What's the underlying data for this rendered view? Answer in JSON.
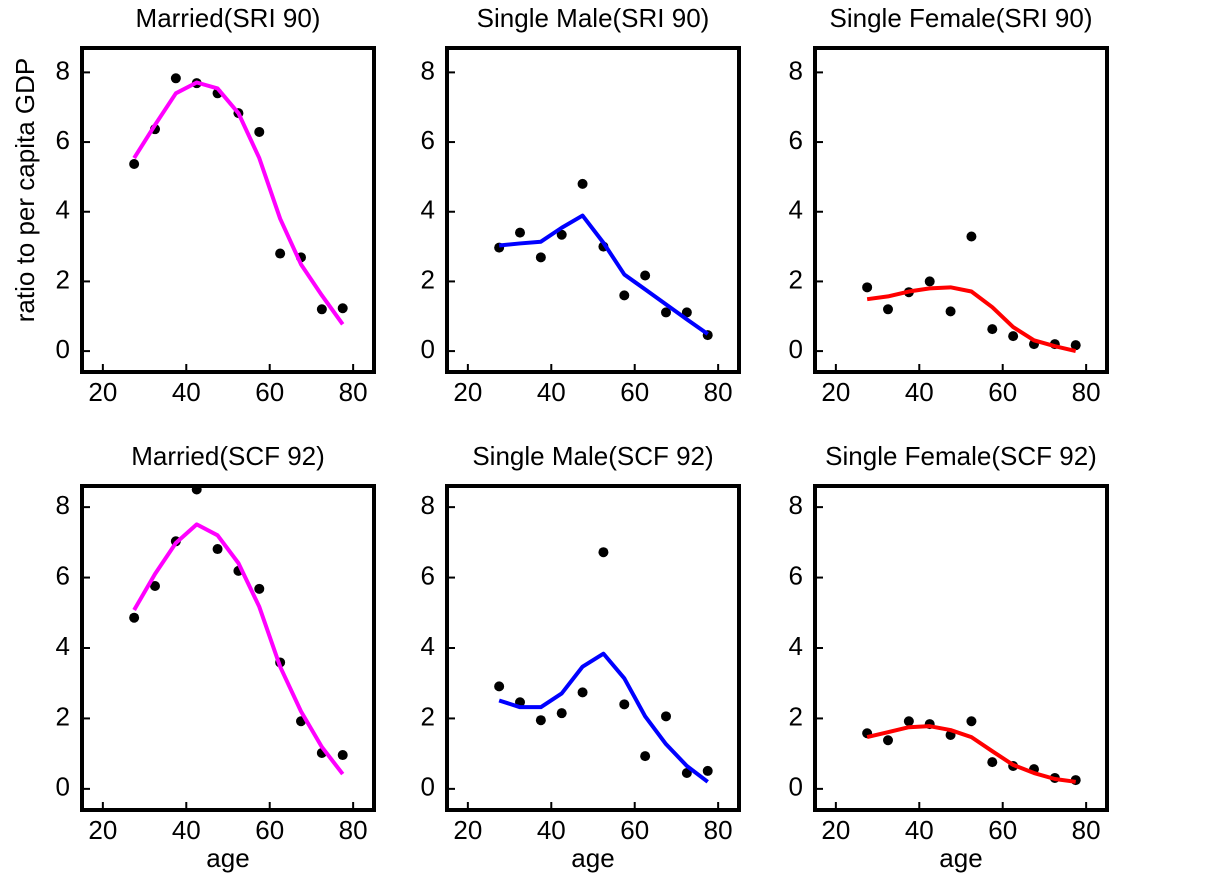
{
  "chart_data": [
    {
      "type": "line",
      "title": "Married(SRI 90)",
      "ylabel": "ratio to per capita GDP",
      "x": [
        27.5,
        32.5,
        37.5,
        42.5,
        47.5,
        52.5,
        57.5,
        62.5,
        67.5,
        72.5,
        77.5
      ],
      "series": [
        {
          "mode": "markers",
          "color": "#000000",
          "values": [
            5.37,
            6.37,
            7.83,
            7.69,
            7.4,
            6.83,
            6.29,
            2.8,
            2.69,
            1.2,
            1.23
          ]
        },
        {
          "mode": "line",
          "color": "#ff00ff",
          "values": [
            5.54,
            6.49,
            7.4,
            7.71,
            7.54,
            6.83,
            5.54,
            3.8,
            2.49,
            1.6,
            0.77
          ]
        }
      ],
      "xlim": [
        15,
        85
      ],
      "xticks": [
        20,
        40,
        60,
        80
      ],
      "ylim": [
        -0.6,
        8.7
      ],
      "yticks": [
        0,
        2,
        4,
        6,
        8
      ]
    },
    {
      "type": "line",
      "title": "Single Male(SRI 90)",
      "x": [
        27.5,
        32.5,
        37.5,
        42.5,
        47.5,
        52.5,
        57.5,
        62.5,
        67.5,
        72.5,
        77.5
      ],
      "series": [
        {
          "mode": "markers",
          "color": "#000000",
          "values": [
            2.97,
            3.4,
            2.69,
            3.34,
            4.8,
            3.0,
            1.6,
            2.17,
            1.11,
            1.11,
            0.46
          ]
        },
        {
          "mode": "line",
          "color": "#0000ff",
          "values": [
            3.03,
            3.09,
            3.14,
            3.54,
            3.89,
            3.11,
            2.2,
            1.77,
            1.34,
            0.91,
            0.49
          ]
        }
      ],
      "xlim": [
        15,
        85
      ],
      "xticks": [
        20,
        40,
        60,
        80
      ],
      "ylim": [
        -0.6,
        8.7
      ],
      "yticks": [
        0,
        2,
        4,
        6,
        8
      ]
    },
    {
      "type": "line",
      "title": "Single Female(SRI 90)",
      "x": [
        27.5,
        32.5,
        37.5,
        42.5,
        47.5,
        52.5,
        57.5,
        62.5,
        67.5,
        72.5,
        77.5
      ],
      "series": [
        {
          "mode": "markers",
          "color": "#000000",
          "values": [
            1.83,
            1.2,
            1.69,
            2.0,
            1.14,
            3.29,
            0.63,
            0.43,
            0.2,
            0.2,
            0.17
          ]
        },
        {
          "mode": "line",
          "color": "#ff0000",
          "values": [
            1.49,
            1.57,
            1.71,
            1.8,
            1.83,
            1.71,
            1.26,
            0.69,
            0.31,
            0.14,
            0
          ]
        }
      ],
      "xlim": [
        15,
        85
      ],
      "xticks": [
        20,
        40,
        60,
        80
      ],
      "ylim": [
        -0.6,
        8.7
      ],
      "yticks": [
        0,
        2,
        4,
        6,
        8
      ]
    },
    {
      "type": "line",
      "title": "Married(SCF 92)",
      "xlabel": "age",
      "x": [
        27.5,
        32.5,
        37.5,
        42.5,
        47.5,
        52.5,
        57.5,
        62.5,
        67.5,
        72.5,
        77.5
      ],
      "series": [
        {
          "mode": "markers",
          "color": "#000000",
          "values": [
            4.86,
            5.76,
            7.03,
            8.5,
            6.81,
            6.19,
            5.68,
            3.59,
            1.92,
            1.02,
            0.96
          ]
        },
        {
          "mode": "line",
          "color": "#ff00ff",
          "values": [
            5.08,
            6.1,
            6.98,
            7.51,
            7.2,
            6.41,
            5.17,
            3.47,
            2.2,
            1.19,
            0.42
          ]
        }
      ],
      "xlim": [
        15,
        85
      ],
      "xticks": [
        20,
        40,
        60,
        80
      ],
      "ylim": [
        -0.6,
        8.6
      ],
      "yticks": [
        0,
        2,
        4,
        6,
        8
      ]
    },
    {
      "type": "line",
      "title": "Single Male(SCF 92)",
      "xlabel": "age",
      "x": [
        27.5,
        32.5,
        37.5,
        42.5,
        47.5,
        52.5,
        57.5,
        62.5,
        67.5,
        72.5,
        77.5
      ],
      "series": [
        {
          "mode": "markers",
          "color": "#000000",
          "values": [
            2.91,
            2.46,
            1.95,
            2.15,
            2.74,
            6.72,
            2.4,
            0.93,
            2.06,
            0.45,
            0.51
          ]
        },
        {
          "mode": "line",
          "color": "#0000ff",
          "values": [
            2.51,
            2.32,
            2.32,
            2.71,
            3.47,
            3.84,
            3.14,
            2.06,
            1.27,
            0.65,
            0.2
          ]
        }
      ],
      "xlim": [
        15,
        85
      ],
      "xticks": [
        20,
        40,
        60,
        80
      ],
      "ylim": [
        -0.6,
        8.6
      ],
      "yticks": [
        0,
        2,
        4,
        6,
        8
      ]
    },
    {
      "type": "line",
      "title": "Single Female(SCF 92)",
      "xlabel": "age",
      "x": [
        27.5,
        32.5,
        37.5,
        42.5,
        47.5,
        52.5,
        57.5,
        62.5,
        67.5,
        72.5,
        77.5
      ],
      "series": [
        {
          "mode": "markers",
          "color": "#000000",
          "values": [
            1.58,
            1.38,
            1.92,
            1.84,
            1.53,
            1.92,
            0.76,
            0.65,
            0.56,
            0.31,
            0.25
          ]
        },
        {
          "mode": "line",
          "color": "#ff0000",
          "values": [
            1.47,
            1.61,
            1.75,
            1.78,
            1.67,
            1.47,
            1.07,
            0.68,
            0.45,
            0.28,
            0.2
          ]
        }
      ],
      "xlim": [
        15,
        85
      ],
      "xticks": [
        20,
        40,
        60,
        80
      ],
      "ylim": [
        -0.6,
        8.6
      ],
      "yticks": [
        0,
        2,
        4,
        6,
        8
      ]
    }
  ]
}
